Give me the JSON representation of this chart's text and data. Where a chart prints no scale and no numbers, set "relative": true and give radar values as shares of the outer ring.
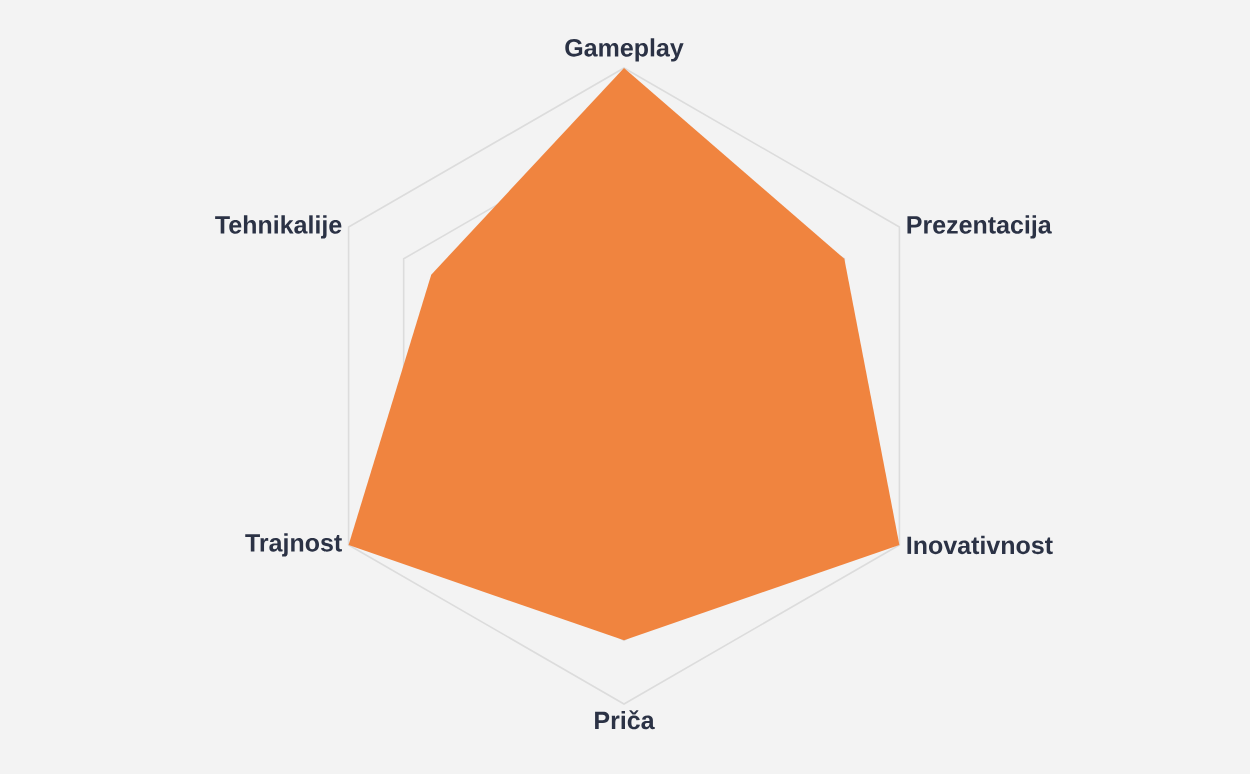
{
  "chart_data": {
    "type": "radar",
    "relative": true,
    "grid": true,
    "categories": [
      "Gameplay",
      "Prezentacija",
      "Inovativnost",
      "Priča",
      "Trajnost",
      "Tehnikalije"
    ],
    "series": [
      {
        "color": "#f0843f",
        "values": [
          1,
          0.8,
          1,
          0.8,
          1,
          0.7
        ]
      }
    ]
  }
}
